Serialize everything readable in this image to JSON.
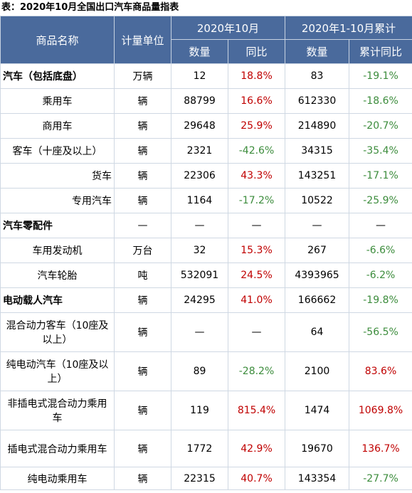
{
  "title": "表：2020年10月全国出口汽车商品量指表",
  "header": {
    "col_name": "商品名称",
    "col_unit": "计量单位",
    "group_month": "2020年10月",
    "group_cum": "2020年1-10月累计",
    "sub_qty": "数量",
    "sub_yoy": "同比",
    "sub_qty2": "数量",
    "sub_cum_yoy": "累计同比"
  },
  "rows": [
    {
      "name": "汽车（包括底盘）",
      "unit": "万辆",
      "qty": "12",
      "yoy": "18.8%",
      "cum_qty": "83",
      "cum_yoy": "-19.1%"
    },
    {
      "name": "乘用车",
      "unit": "辆",
      "qty": "88799",
      "yoy": "16.6%",
      "cum_qty": "612330",
      "cum_yoy": "-18.6%"
    },
    {
      "name": "商用车",
      "unit": "辆",
      "qty": "29648",
      "yoy": "25.9%",
      "cum_qty": "214890",
      "cum_yoy": "-20.7%"
    },
    {
      "name": "客车（十座及以上）",
      "unit": "辆",
      "qty": "2321",
      "yoy": "-42.6%",
      "cum_qty": "34315",
      "cum_yoy": "-35.4%"
    },
    {
      "name": "货车",
      "unit": "辆",
      "qty": "22306",
      "yoy": "43.3%",
      "cum_qty": "143251",
      "cum_yoy": "-17.1%"
    },
    {
      "name": "专用汽车",
      "unit": "辆",
      "qty": "1164",
      "yoy": "-17.2%",
      "cum_qty": "10522",
      "cum_yoy": "-25.9%"
    },
    {
      "name": "汽车零配件",
      "unit": "—",
      "qty": "—",
      "yoy": "—",
      "cum_qty": "—",
      "cum_yoy": "—"
    },
    {
      "name": "车用发动机",
      "unit": "万台",
      "qty": "32",
      "yoy": "15.3%",
      "cum_qty": "267",
      "cum_yoy": "-6.6%"
    },
    {
      "name": "汽车轮胎",
      "unit": "吨",
      "qty": "532091",
      "yoy": "24.5%",
      "cum_qty": "4393965",
      "cum_yoy": "-6.2%"
    },
    {
      "name": "电动载人汽车",
      "unit": "辆",
      "qty": "24295",
      "yoy": "41.0%",
      "cum_qty": "166662",
      "cum_yoy": "-19.8%"
    },
    {
      "name": "混合动力客车（10座及以上）",
      "unit": "辆",
      "qty": "—",
      "yoy": "—",
      "cum_qty": "64",
      "cum_yoy": "-56.5%"
    },
    {
      "name": "纯电动汽车（10座及以上）",
      "unit": "辆",
      "qty": "89",
      "yoy": "-28.2%",
      "cum_qty": "2100",
      "cum_yoy": "83.6%"
    },
    {
      "name": "非插电式混合动力乘用车",
      "unit": "辆",
      "qty": "119",
      "yoy": "815.4%",
      "cum_qty": "1474",
      "cum_yoy": "1069.8%"
    },
    {
      "name": "插电式混合动力乘用车",
      "unit": "辆",
      "qty": "1772",
      "yoy": "42.9%",
      "cum_qty": "19670",
      "cum_yoy": "136.7%"
    },
    {
      "name": "纯电动乘用车",
      "unit": "辆",
      "qty": "22315",
      "yoy": "40.7%",
      "cum_qty": "143354",
      "cum_yoy": "-27.7%"
    }
  ],
  "colors": {
    "header_bg": "#4a6a9c",
    "positive": "#c00000",
    "negative": "#3c8c3c",
    "border": "#cfd8e3"
  }
}
